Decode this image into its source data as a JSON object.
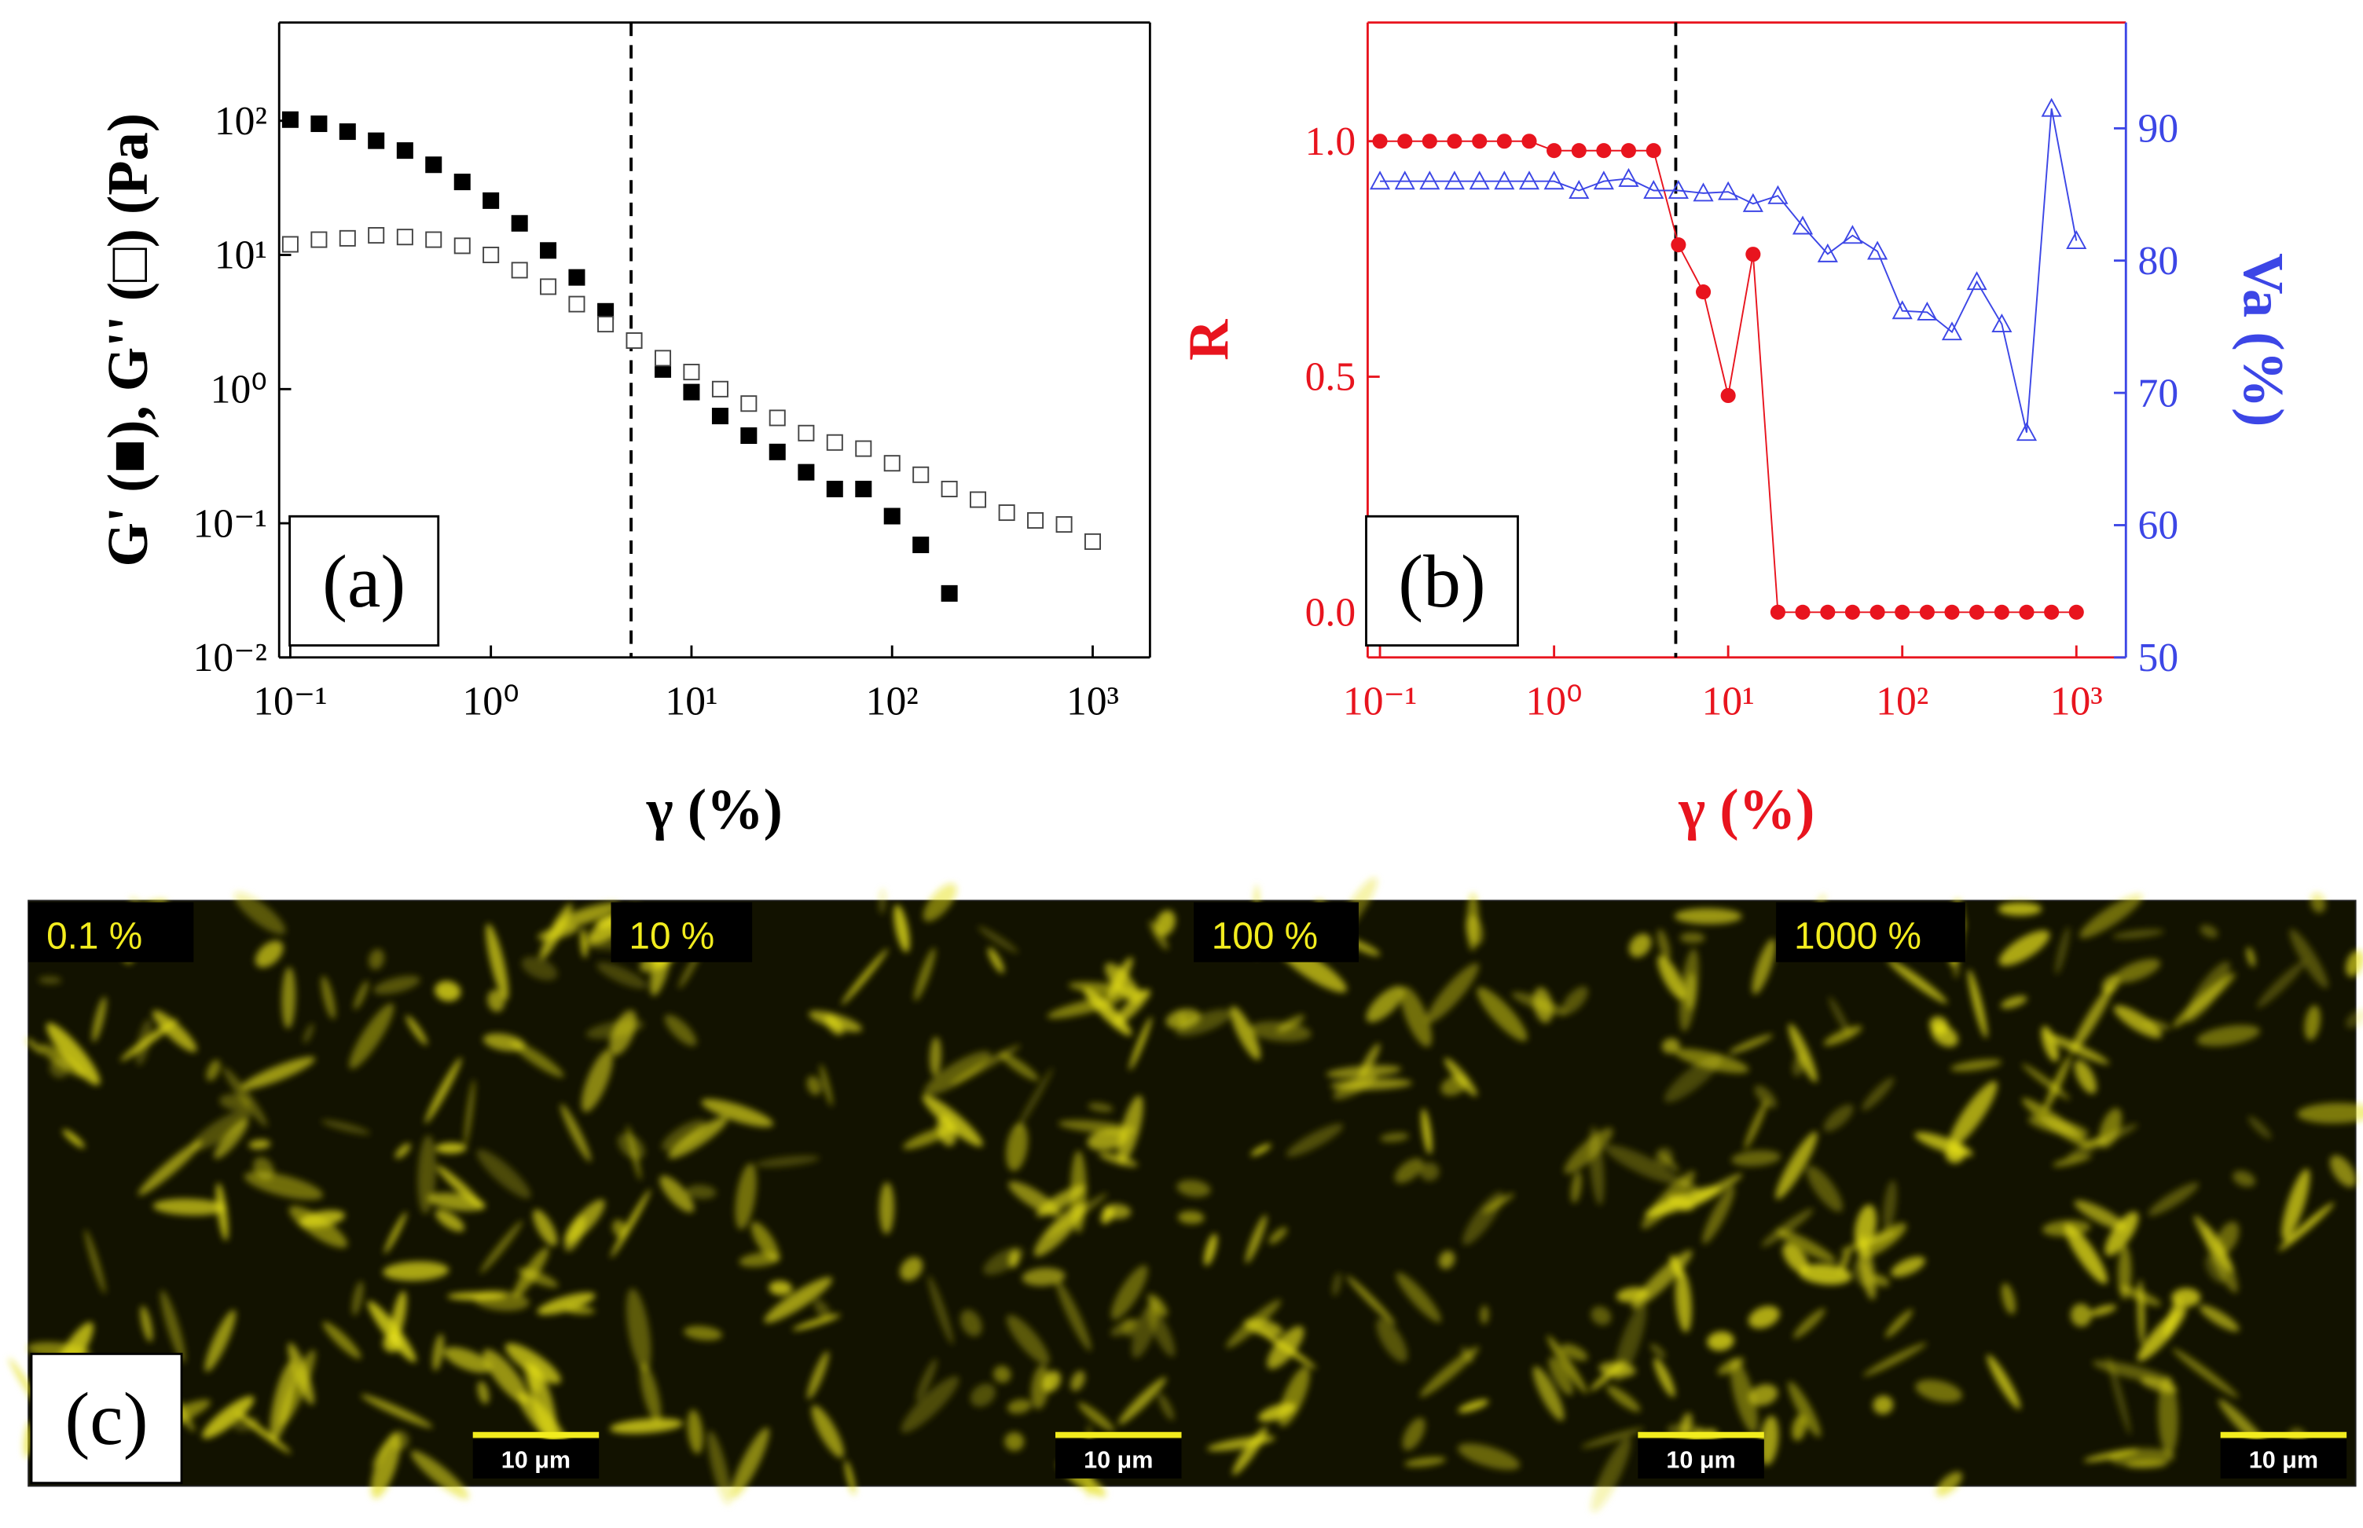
{
  "chart_data": [
    {
      "type": "scatter",
      "panel_label": "(a)",
      "xlabel": "γ (%)",
      "ylabel": "G' (■), G'' (□) (Pa)",
      "xscale": "log",
      "yscale": "log",
      "xlim": [
        0.088,
        1930
      ],
      "ylim": [
        0.01,
        540
      ],
      "xticks": [
        {
          "value": 0.1,
          "label": "10⁻¹"
        },
        {
          "value": 1,
          "label": "10⁰"
        },
        {
          "value": 10,
          "label": "10¹"
        },
        {
          "value": 100,
          "label": "10²"
        },
        {
          "value": 1000,
          "label": "10³"
        }
      ],
      "yticks": [
        {
          "value": 0.01,
          "label": "10⁻²"
        },
        {
          "value": 0.1,
          "label": "10⁻¹"
        },
        {
          "value": 1,
          "label": "10⁰"
        },
        {
          "value": 10,
          "label": "10¹"
        },
        {
          "value": 100,
          "label": "10²"
        }
      ],
      "vline": 5,
      "x": [
        0.1,
        0.139,
        0.193,
        0.268,
        0.373,
        0.518,
        0.72,
        1,
        1.39,
        1.93,
        2.68,
        3.73,
        5.18,
        7.2,
        10,
        13.9,
        19.3,
        26.8,
        37.3,
        51.8,
        72,
        100,
        139,
        193,
        268,
        373,
        518,
        720,
        1000
      ],
      "series": [
        {
          "name": "G'",
          "color": "#000000",
          "marker": "filled-square",
          "values": [
            102,
            95,
            83,
            71,
            60,
            47,
            35,
            25.4,
            17.2,
            10.8,
            6.8,
            3.8,
            2.3,
            1.4,
            0.95,
            0.63,
            0.45,
            0.34,
            0.24,
            0.18,
            0.18,
            0.113,
            0.069,
            0.03,
            null,
            null,
            null,
            null,
            null
          ]
        },
        {
          "name": "G''",
          "color": "#444444",
          "marker": "open-square",
          "values": [
            12,
            13,
            13.3,
            14,
            13.6,
            13,
            11.7,
            10,
            7.7,
            5.8,
            4.3,
            3.05,
            2.3,
            1.7,
            1.34,
            1.0,
            0.78,
            0.61,
            0.47,
            0.4,
            0.36,
            0.28,
            0.23,
            0.18,
            0.15,
            0.12,
            0.105,
            0.098,
            0.073
          ]
        }
      ]
    },
    {
      "type": "line",
      "panel_label": "(b)",
      "xlabel": "γ (%)",
      "ylabel": "R",
      "y2label": "Va (%)",
      "xscale": "log",
      "xlim": [
        0.085,
        1925
      ],
      "ylim": [
        -0.096,
        1.252
      ],
      "y2lim": [
        50,
        98
      ],
      "xticks": [
        {
          "value": 0.1,
          "label": "10⁻¹"
        },
        {
          "value": 1,
          "label": "10⁰"
        },
        {
          "value": 10,
          "label": "10¹"
        },
        {
          "value": 100,
          "label": "10²"
        },
        {
          "value": 1000,
          "label": "10³"
        }
      ],
      "yticks": [
        {
          "value": 0,
          "label": "0.0"
        },
        {
          "value": 0.5,
          "label": "0.5"
        },
        {
          "value": 1,
          "label": "1.0"
        }
      ],
      "y2ticks": [
        50,
        60,
        70,
        80,
        90
      ],
      "vline": 5,
      "x": [
        0.1,
        0.139,
        0.193,
        0.268,
        0.373,
        0.518,
        0.72,
        1,
        1.39,
        1.93,
        2.68,
        3.73,
        5.18,
        7.2,
        10,
        13.9,
        19.3,
        26.8,
        37.3,
        51.8,
        72,
        100,
        139,
        193,
        268,
        373,
        518,
        720,
        1000
      ],
      "series": [
        {
          "name": "R",
          "color": "#e8141e",
          "marker": "filled-circle",
          "values": [
            1.0,
            1.0,
            1.0,
            1.0,
            1.0,
            1.0,
            1.0,
            0.98,
            0.98,
            0.98,
            0.98,
            0.98,
            0.78,
            0.68,
            0.46,
            0.76,
            0,
            0,
            0,
            0,
            0,
            0,
            0,
            0,
            0,
            0,
            0,
            0,
            0
          ]
        },
        {
          "name": "Va",
          "color": "#3c46e6",
          "marker": "open-triangle",
          "axis": "y2",
          "values": [
            86,
            86,
            86,
            86,
            86,
            86,
            86,
            86,
            85.3,
            86,
            86.2,
            85.3,
            85.3,
            85.1,
            85.2,
            84.3,
            84.9,
            82.6,
            80.5,
            81.9,
            80.7,
            76.2,
            76.1,
            74.6,
            78.4,
            75.2,
            67,
            91.5,
            81.5
          ]
        }
      ]
    }
  ],
  "micrographs": {
    "panel_label": "(c)",
    "panels": [
      {
        "label": "0.1 %",
        "scale_bar": "10 μm"
      },
      {
        "label": "10 %",
        "scale_bar": "10 μm"
      },
      {
        "label": "100 %",
        "scale_bar": "10 μm"
      },
      {
        "label": "1000 %",
        "scale_bar": "10 μm"
      }
    ]
  }
}
